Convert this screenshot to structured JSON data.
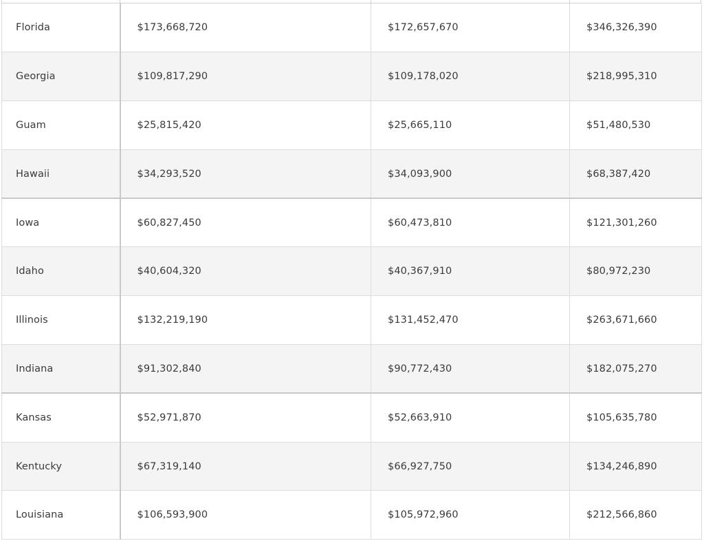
{
  "table": {
    "rows": [
      {
        "state": "Florida",
        "col_a": "$173,668,720",
        "col_b": "$172,657,670",
        "col_c": "$346,326,390"
      },
      {
        "state": "Georgia",
        "col_a": "$109,817,290",
        "col_b": "$109,178,020",
        "col_c": "$218,995,310"
      },
      {
        "state": "Guam",
        "col_a": "$25,815,420",
        "col_b": "$25,665,110",
        "col_c": "$51,480,530"
      },
      {
        "state": "Hawaii",
        "col_a": "$34,293,520",
        "col_b": "$34,093,900",
        "col_c": "$68,387,420"
      },
      {
        "state": "Iowa",
        "col_a": "$60,827,450",
        "col_b": "$60,473,810",
        "col_c": "$121,301,260"
      },
      {
        "state": "Idaho",
        "col_a": "$40,604,320",
        "col_b": "$40,367,910",
        "col_c": "$80,972,230"
      },
      {
        "state": "Illinois",
        "col_a": "$132,219,190",
        "col_b": "$131,452,470",
        "col_c": "$263,671,660"
      },
      {
        "state": "Indiana",
        "col_a": "$91,302,840",
        "col_b": "$90,772,430",
        "col_c": "$182,075,270"
      },
      {
        "state": "Kansas",
        "col_a": "$52,971,870",
        "col_b": "$52,663,910",
        "col_c": "$105,635,780"
      },
      {
        "state": "Kentucky",
        "col_a": "$67,319,140",
        "col_b": "$66,927,750",
        "col_c": "$134,246,890"
      },
      {
        "state": "Louisiana",
        "col_a": "$106,593,900",
        "col_b": "$105,972,960",
        "col_c": "$212,566,860"
      }
    ]
  }
}
